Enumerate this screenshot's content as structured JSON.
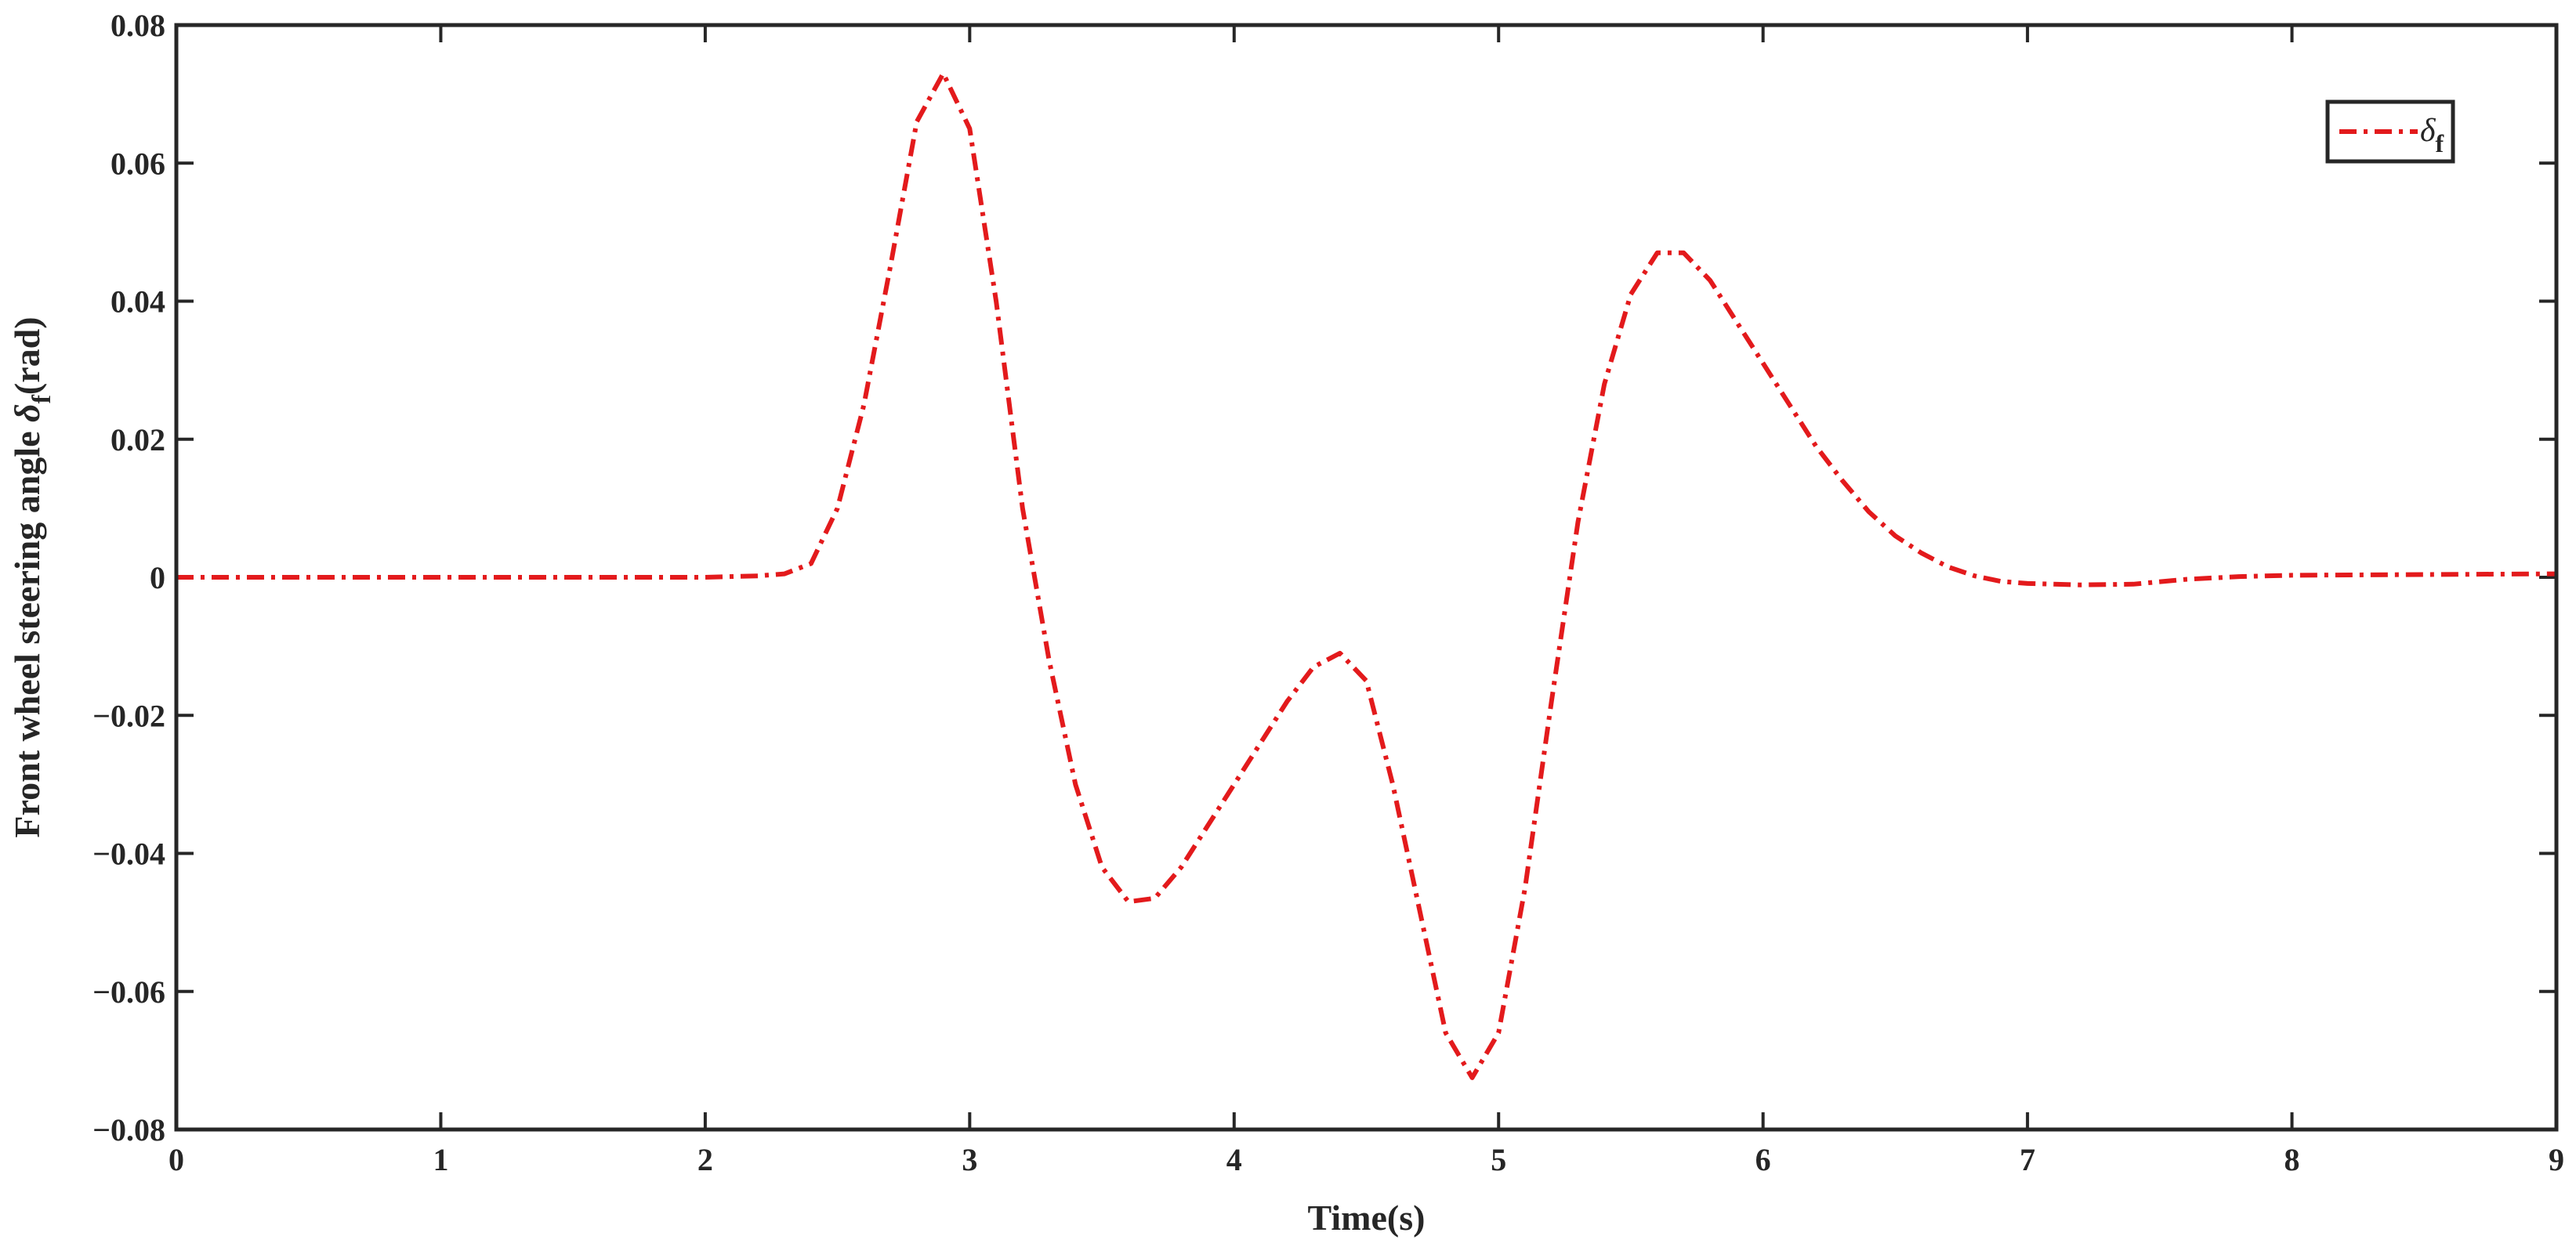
{
  "chart_data": {
    "type": "line",
    "title": "",
    "xlabel": "Time(s)",
    "ylabel_prefix": "Front wheel steering angle ",
    "ylabel_symbol": "δ",
    "ylabel_subscript": "f",
    "ylabel_suffix": "(rad)",
    "xlim": [
      0,
      9
    ],
    "ylim": [
      -0.08,
      0.08
    ],
    "xticks": [
      0,
      1,
      2,
      3,
      4,
      5,
      6,
      7,
      8,
      9
    ],
    "xtick_labels": [
      "0",
      "1",
      "2",
      "3",
      "4",
      "5",
      "6",
      "7",
      "8",
      "9"
    ],
    "yticks": [
      -0.08,
      -0.06,
      -0.04,
      -0.02,
      0,
      0.02,
      0.04,
      0.06,
      0.08
    ],
    "ytick_labels": [
      "−0.08",
      "−0.06",
      "−0.04",
      "−0.02",
      "0",
      "0.02",
      "0.04",
      "0.06",
      "0.08"
    ],
    "grid": false,
    "legend_position": "top-right",
    "series": [
      {
        "legend_symbol": "δ",
        "legend_subscript": "f",
        "color": "#e31a1c",
        "line_style": "dash-dot",
        "x": [
          0,
          0.5,
          1.0,
          1.5,
          2.0,
          2.2,
          2.3,
          2.4,
          2.5,
          2.6,
          2.7,
          2.8,
          2.9,
          3.0,
          3.1,
          3.2,
          3.3,
          3.4,
          3.5,
          3.6,
          3.7,
          3.8,
          3.9,
          4.0,
          4.1,
          4.2,
          4.3,
          4.4,
          4.5,
          4.6,
          4.7,
          4.8,
          4.9,
          5.0,
          5.1,
          5.2,
          5.3,
          5.4,
          5.5,
          5.6,
          5.7,
          5.8,
          5.9,
          6.0,
          6.1,
          6.2,
          6.3,
          6.4,
          6.5,
          6.6,
          6.7,
          6.8,
          6.9,
          7.0,
          7.2,
          7.4,
          7.6,
          7.8,
          8.0,
          8.5,
          9.0
        ],
        "y": [
          0,
          0,
          0,
          0,
          0,
          0.0002,
          0.0005,
          0.002,
          0.01,
          0.025,
          0.045,
          0.066,
          0.073,
          0.065,
          0.04,
          0.01,
          -0.012,
          -0.03,
          -0.042,
          -0.047,
          -0.0465,
          -0.042,
          -0.036,
          -0.03,
          -0.024,
          -0.018,
          -0.013,
          -0.011,
          -0.015,
          -0.03,
          -0.048,
          -0.066,
          -0.0725,
          -0.066,
          -0.045,
          -0.018,
          0.008,
          0.028,
          0.041,
          0.047,
          0.047,
          0.043,
          0.037,
          0.031,
          0.025,
          0.019,
          0.014,
          0.0095,
          0.006,
          0.0035,
          0.0015,
          0.0002,
          -0.0006,
          -0.0009,
          -0.0011,
          -0.001,
          -0.0003,
          0.0001,
          0.0003,
          0.0004,
          0.0005
        ]
      }
    ]
  }
}
